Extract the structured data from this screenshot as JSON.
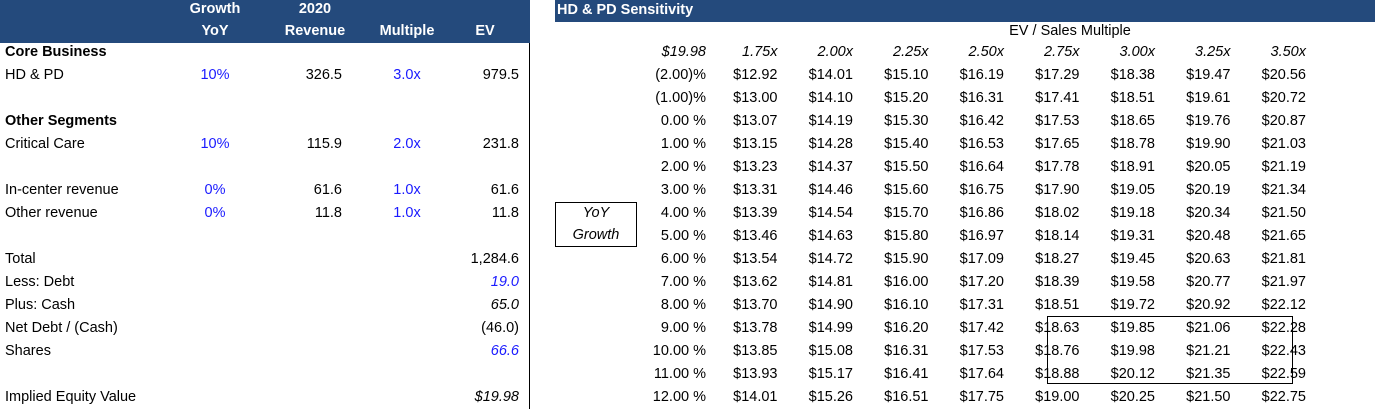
{
  "left": {
    "headers": {
      "growth_1": "Growth",
      "growth_2": "YoY",
      "revenue_1": "2020",
      "revenue_2": "Revenue",
      "multiple": "Multiple",
      "ev": "EV"
    },
    "rows": [
      {
        "label": "Core Business",
        "bold": true
      },
      {
        "label": "HD & PD",
        "growth": "10%",
        "revenue": "326.5",
        "multiple": "3.0x",
        "ev": "979.5"
      },
      {
        "label": ""
      },
      {
        "label": "Other Segments",
        "bold": true
      },
      {
        "label": "Critical Care",
        "growth": "10%",
        "revenue": "115.9",
        "multiple": "2.0x",
        "ev": "231.8"
      },
      {
        "label": ""
      },
      {
        "label": "In-center revenue",
        "growth": "0%",
        "revenue": "61.6",
        "multiple": "1.0x",
        "ev": "61.6"
      },
      {
        "label": "Other revenue",
        "growth": "0%",
        "revenue": "11.8",
        "multiple": "1.0x",
        "ev": "11.8"
      },
      {
        "label": ""
      },
      {
        "label": "Total",
        "ev": "1,284.6"
      },
      {
        "label": "Less: Debt",
        "ev": "19.0",
        "ev_style": "blue-italic"
      },
      {
        "label": "Plus: Cash",
        "ev": "65.0",
        "ev_style": "italic"
      },
      {
        "label": "Net Debt / (Cash)",
        "ev": "(46.0)"
      },
      {
        "label": "Shares",
        "ev": "66.6",
        "ev_style": "blue-italic"
      },
      {
        "label": ""
      },
      {
        "label": "Implied Equity Value",
        "ev": "$19.98",
        "ev_style": "italic"
      }
    ]
  },
  "right": {
    "title": "HD & PD Sensitivity",
    "col_axis_label": "EV / Sales Multiple",
    "corner": "$19.98",
    "row_axis_label_1": "YoY",
    "row_axis_label_2": "Growth",
    "multiples": [
      "1.75x",
      "2.00x",
      "2.25x",
      "2.50x",
      "2.75x",
      "3.00x",
      "3.25x",
      "3.50x"
    ],
    "growths": [
      "(2.00)%",
      "(1.00)%",
      "0.00 %",
      "1.00 %",
      "2.00 %",
      "3.00 %",
      "4.00 %",
      "5.00 %",
      "6.00 %",
      "7.00 %",
      "8.00 %",
      "9.00 %",
      "10.00 %",
      "11.00 %",
      "12.00 %"
    ],
    "values": [
      [
        "$12.92",
        "$14.01",
        "$15.10",
        "$16.19",
        "$17.29",
        "$18.38",
        "$19.47",
        "$20.56"
      ],
      [
        "$13.00",
        "$14.10",
        "$15.20",
        "$16.31",
        "$17.41",
        "$18.51",
        "$19.61",
        "$20.72"
      ],
      [
        "$13.07",
        "$14.19",
        "$15.30",
        "$16.42",
        "$17.53",
        "$18.65",
        "$19.76",
        "$20.87"
      ],
      [
        "$13.15",
        "$14.28",
        "$15.40",
        "$16.53",
        "$17.65",
        "$18.78",
        "$19.90",
        "$21.03"
      ],
      [
        "$13.23",
        "$14.37",
        "$15.50",
        "$16.64",
        "$17.78",
        "$18.91",
        "$20.05",
        "$21.19"
      ],
      [
        "$13.31",
        "$14.46",
        "$15.60",
        "$16.75",
        "$17.90",
        "$19.05",
        "$20.19",
        "$21.34"
      ],
      [
        "$13.39",
        "$14.54",
        "$15.70",
        "$16.86",
        "$18.02",
        "$19.18",
        "$20.34",
        "$21.50"
      ],
      [
        "$13.46",
        "$14.63",
        "$15.80",
        "$16.97",
        "$18.14",
        "$19.31",
        "$20.48",
        "$21.65"
      ],
      [
        "$13.54",
        "$14.72",
        "$15.90",
        "$17.09",
        "$18.27",
        "$19.45",
        "$20.63",
        "$21.81"
      ],
      [
        "$13.62",
        "$14.81",
        "$16.00",
        "$17.20",
        "$18.39",
        "$19.58",
        "$20.77",
        "$21.97"
      ],
      [
        "$13.70",
        "$14.90",
        "$16.10",
        "$17.31",
        "$18.51",
        "$19.72",
        "$20.92",
        "$22.12"
      ],
      [
        "$13.78",
        "$14.99",
        "$16.20",
        "$17.42",
        "$18.63",
        "$19.85",
        "$21.06",
        "$22.28"
      ],
      [
        "$13.85",
        "$15.08",
        "$16.31",
        "$17.53",
        "$18.76",
        "$19.98",
        "$21.21",
        "$22.43"
      ],
      [
        "$13.93",
        "$15.17",
        "$16.41",
        "$17.64",
        "$18.88",
        "$20.12",
        "$21.35",
        "$22.59"
      ],
      [
        "$14.01",
        "$15.26",
        "$16.51",
        "$17.75",
        "$19.00",
        "$20.25",
        "$21.50",
        "$22.75"
      ]
    ]
  },
  "colors": {
    "header_bg": "#244a7c",
    "input_blue": "#1a1aff"
  }
}
